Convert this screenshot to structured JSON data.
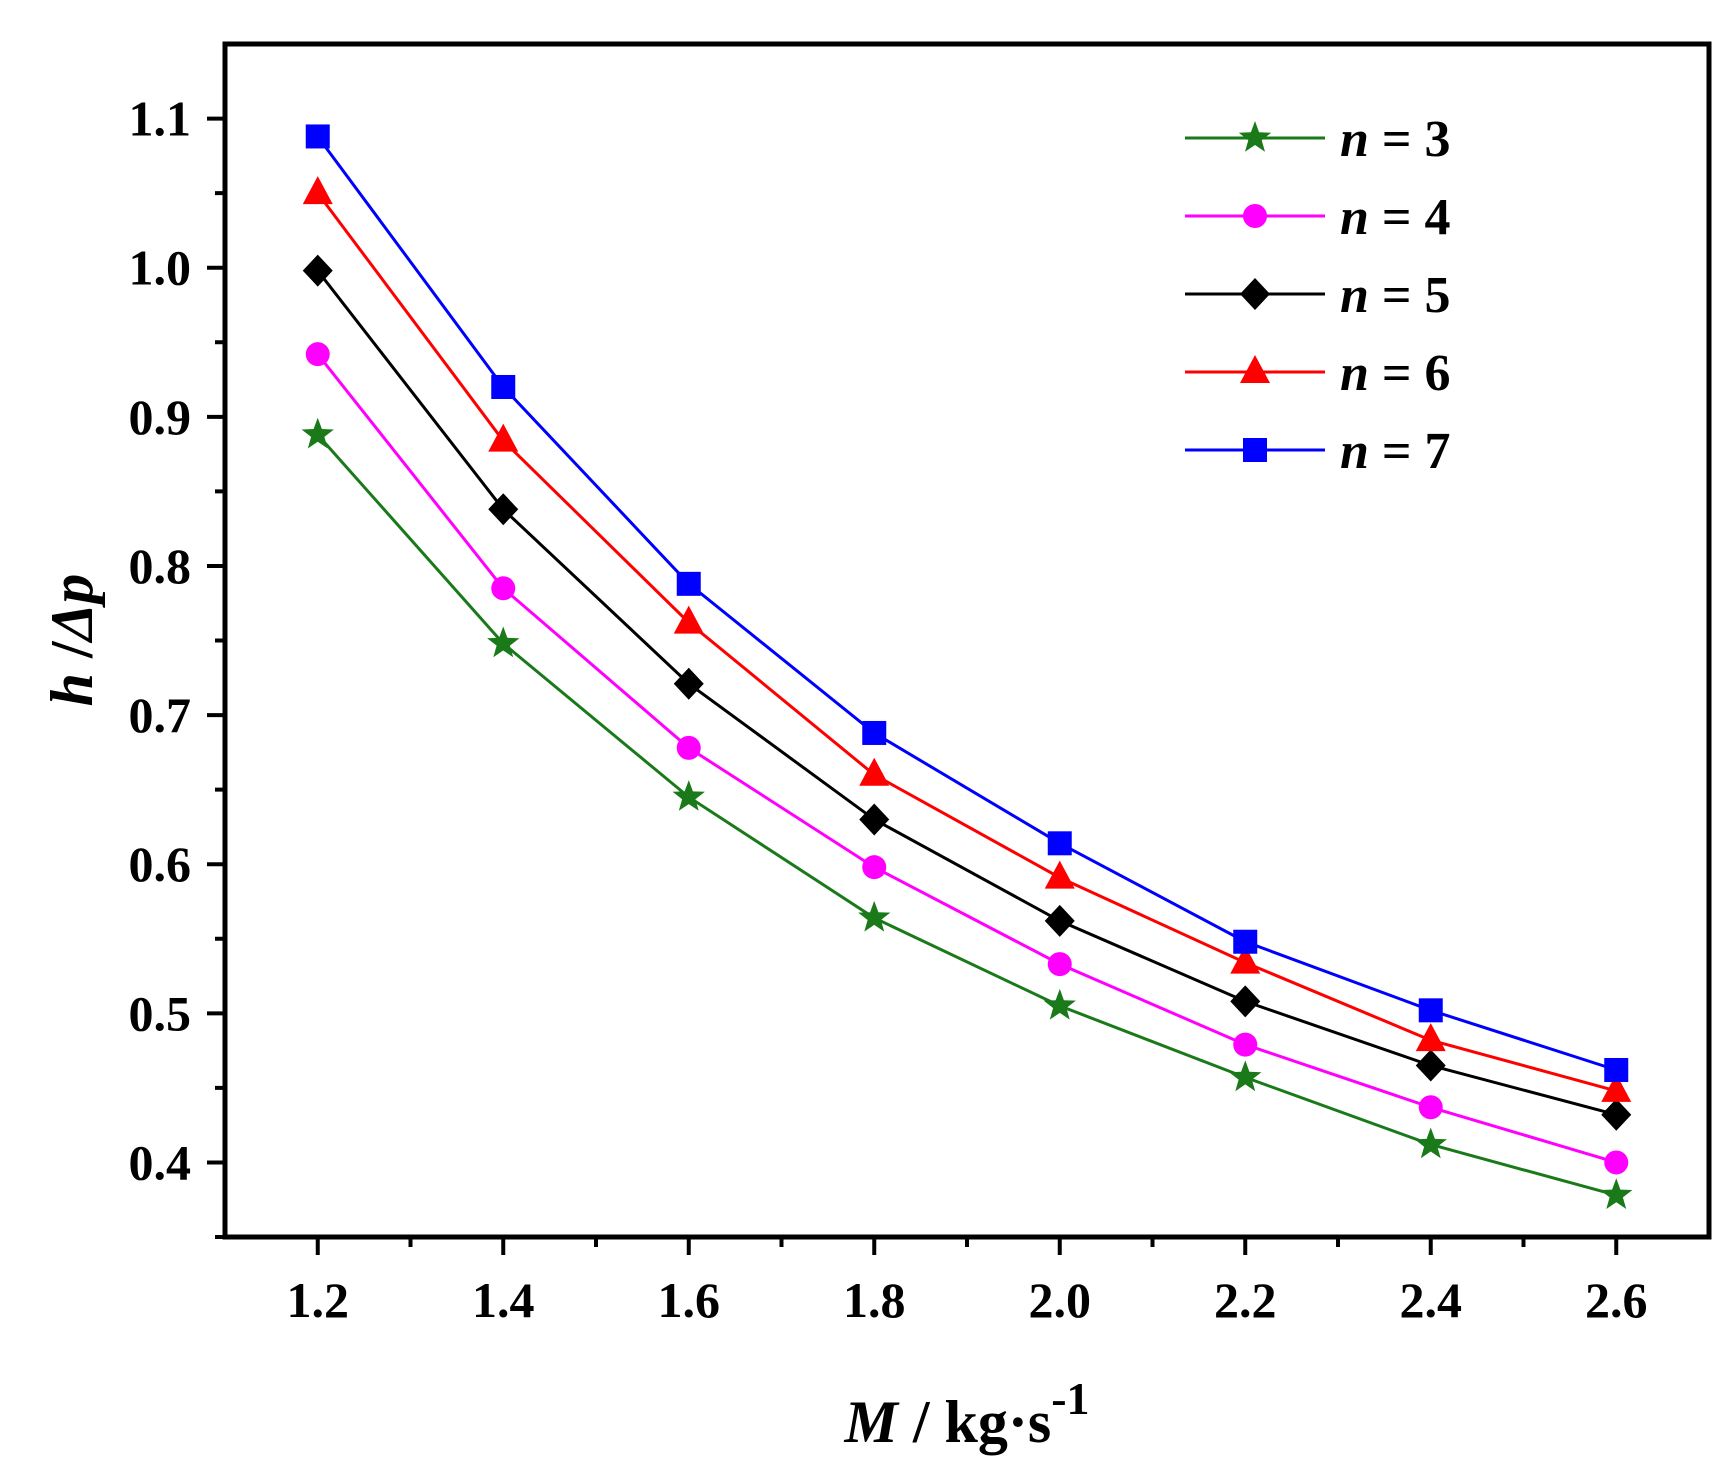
{
  "chart_data": {
    "type": "line",
    "title": "",
    "xlabel_var": "M",
    "xlabel_unit": " / kg·s",
    "xlabel_exp": "-1",
    "ylabel_var": "h",
    "ylabel_sep": " /",
    "ylabel_var2": "Δp",
    "x": [
      1.2,
      1.4,
      1.6,
      1.8,
      2.0,
      2.2,
      2.4,
      2.6
    ],
    "xtick_labels": [
      "1.2",
      "1.4",
      "1.6",
      "1.8",
      "2.0",
      "2.2",
      "2.4",
      "2.6"
    ],
    "ytick_values": [
      0.4,
      0.5,
      0.6,
      0.7,
      0.8,
      0.9,
      1.0,
      1.1
    ],
    "ytick_labels": [
      "0.4",
      "0.5",
      "0.6",
      "0.7",
      "0.8",
      "0.9",
      "1.0",
      "1.1"
    ],
    "xlim": [
      1.1,
      2.7
    ],
    "ylim": [
      0.35,
      1.15
    ],
    "grid": false,
    "legend_position": "top-right",
    "series": [
      {
        "name": "n = 3",
        "var": "n",
        "label": " = 3",
        "color": "#1a7a1a",
        "marker": "star",
        "values": [
          0.888,
          0.748,
          0.645,
          0.564,
          0.505,
          0.457,
          0.412,
          0.378
        ]
      },
      {
        "name": "n = 4",
        "var": "n",
        "label": " = 4",
        "color": "#ff00ff",
        "marker": "circle",
        "values": [
          0.942,
          0.785,
          0.678,
          0.598,
          0.533,
          0.479,
          0.437,
          0.4
        ]
      },
      {
        "name": "n = 5",
        "var": "n",
        "label": " = 5",
        "color": "#000000",
        "marker": "diamond",
        "values": [
          0.998,
          0.838,
          0.721,
          0.63,
          0.562,
          0.508,
          0.465,
          0.432
        ]
      },
      {
        "name": "n = 6",
        "var": "n",
        "label": " = 6",
        "color": "#ff0000",
        "marker": "triangle",
        "values": [
          1.05,
          0.884,
          0.762,
          0.66,
          0.591,
          0.534,
          0.482,
          0.448
        ]
      },
      {
        "name": "n = 7",
        "var": "n",
        "label": " = 7",
        "color": "#0000ff",
        "marker": "square",
        "values": [
          1.088,
          0.92,
          0.788,
          0.688,
          0.614,
          0.548,
          0.502,
          0.462
        ]
      }
    ]
  }
}
